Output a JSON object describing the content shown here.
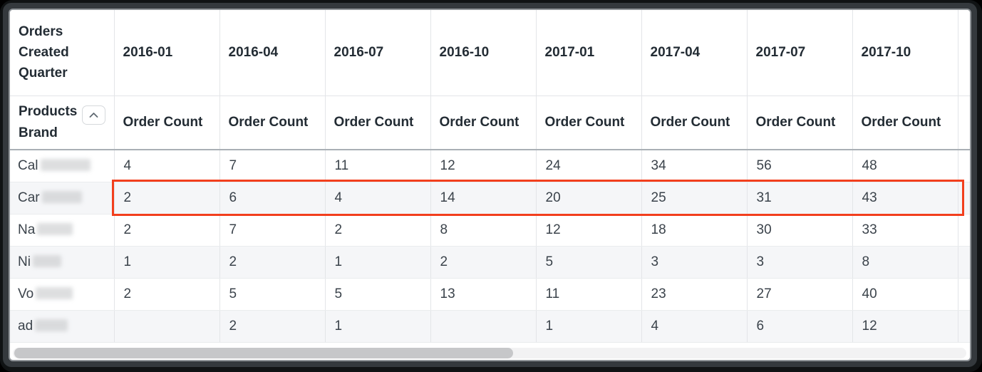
{
  "table": {
    "corner_header": "Orders Created Quarter",
    "row_dimension_label": "Products Brand",
    "sort_icon": "chevron-up",
    "measure_header": "Order Count",
    "quarter_headers": [
      "2016-01",
      "2016-04",
      "2016-07",
      "2016-10",
      "2017-01",
      "2017-04",
      "2017-07",
      "2017-10"
    ],
    "rows": [
      {
        "brand_prefix": "Cal",
        "brand_redacted": true,
        "highlighted": false,
        "values": [
          "4",
          "7",
          "11",
          "12",
          "24",
          "34",
          "56",
          "48"
        ]
      },
      {
        "brand_prefix": "Car",
        "brand_redacted": true,
        "highlighted": true,
        "values": [
          "2",
          "6",
          "4",
          "14",
          "20",
          "25",
          "31",
          "43"
        ]
      },
      {
        "brand_prefix": "Na",
        "brand_redacted": true,
        "highlighted": false,
        "values": [
          "2",
          "7",
          "2",
          "8",
          "12",
          "18",
          "30",
          "33"
        ]
      },
      {
        "brand_prefix": "Ni",
        "brand_redacted": true,
        "highlighted": false,
        "values": [
          "1",
          "2",
          "1",
          "2",
          "5",
          "3",
          "3",
          "8"
        ]
      },
      {
        "brand_prefix": "Vo",
        "brand_redacted": true,
        "highlighted": false,
        "values": [
          "2",
          "5",
          "5",
          "13",
          "11",
          "23",
          "27",
          "40"
        ]
      },
      {
        "brand_prefix": "ad",
        "brand_redacted": true,
        "highlighted": false,
        "values": [
          "",
          "2",
          "1",
          "",
          "1",
          "4",
          "6",
          "12"
        ]
      }
    ]
  },
  "scrollbar": {
    "orientation": "horizontal",
    "thumb_position": "left"
  },
  "colors": {
    "highlight_border": "#f23f1d",
    "header_text": "#232c34",
    "cell_text": "#3b434b",
    "gridline": "#e3e5e8",
    "header_rule": "#a9afb5",
    "row_alt_bg": "#f5f6f8",
    "scroll_thumb": "#c6c7c9",
    "frame": "#34393d"
  }
}
